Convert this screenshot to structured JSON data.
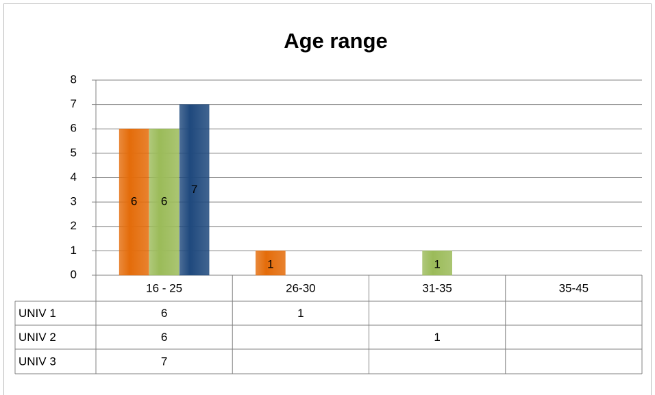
{
  "chart_data": {
    "type": "bar",
    "title": "Age range",
    "categories": [
      "16 - 25",
      "26-30",
      "31-35",
      "35-45"
    ],
    "series": [
      {
        "name": "UNIV 1",
        "color": "#e46c0a",
        "values": [
          6,
          1,
          null,
          null
        ]
      },
      {
        "name": "UNIV 2",
        "color": "#9bbb59",
        "values": [
          6,
          null,
          1,
          null
        ]
      },
      {
        "name": "UNIV 3",
        "color": "#1f497d",
        "values": [
          7,
          null,
          null,
          null
        ]
      }
    ],
    "ylim": [
      0,
      8
    ],
    "yticks": [
      0,
      1,
      2,
      3,
      4,
      5,
      6,
      7,
      8
    ],
    "grid": true
  }
}
